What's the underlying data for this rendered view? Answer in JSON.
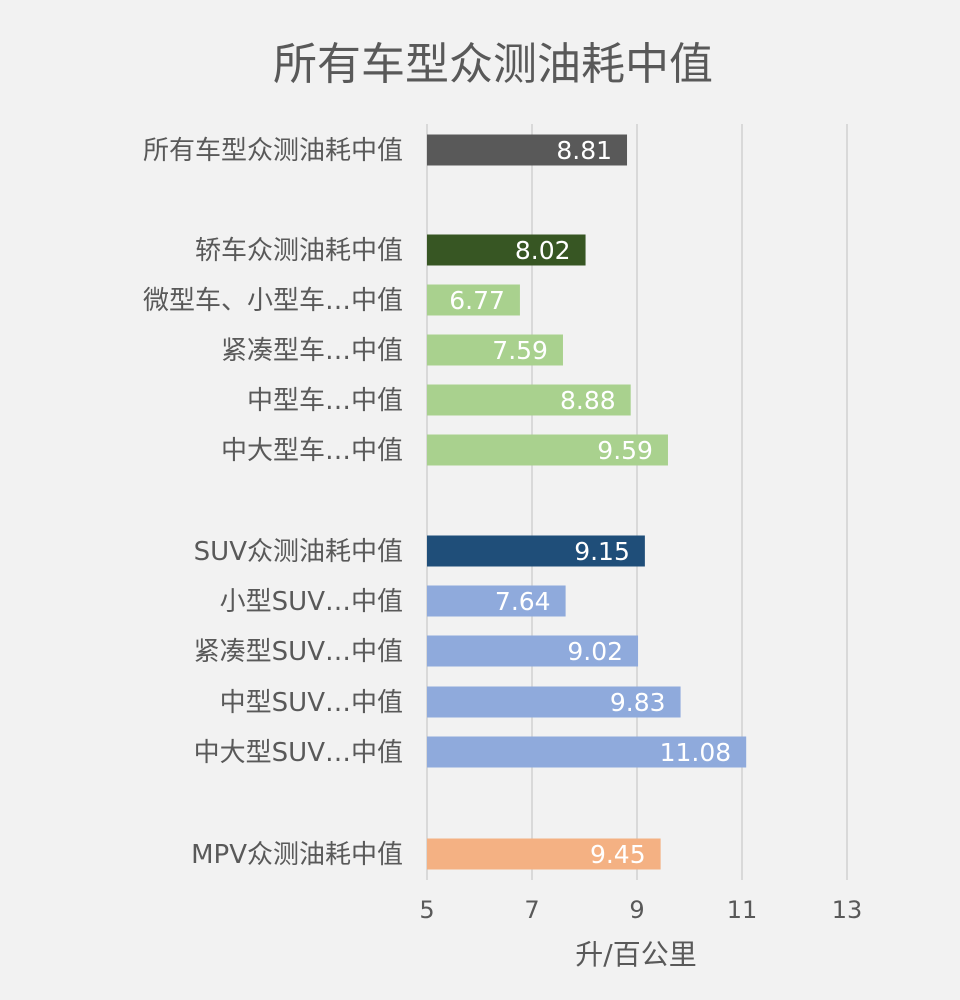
{
  "chart_data": {
    "type": "bar",
    "orientation": "horizontal",
    "title": "所有车型众测油耗中值",
    "xlabel": "升/百公里",
    "ylabel": "",
    "xlim": [
      5,
      13
    ],
    "x_ticks": [
      5,
      7,
      9,
      11,
      13
    ],
    "grid": true,
    "legend": "none",
    "categories": [
      "所有车型众测油耗中值",
      "轿车众测油耗中值",
      "微型车、小型车…中值",
      "紧凑型车…中值",
      "中型车…中值",
      "中大型车…中值",
      "SUV众测油耗中值",
      "小型SUV…中值",
      "紧凑型SUV…中值",
      "中型SUV…中值",
      "中大型SUV…中值",
      "MPV众测油耗中值"
    ],
    "values": [
      8.81,
      8.02,
      6.77,
      7.59,
      8.88,
      9.59,
      9.15,
      7.64,
      9.02,
      9.83,
      11.08,
      9.45
    ],
    "data_labels": [
      "8.81",
      "8.02",
      "6.77",
      "7.59",
      "8.88",
      "9.59",
      "9.15",
      "7.64",
      "9.02",
      "9.83",
      "11.08",
      "9.45"
    ],
    "colors": [
      "#595959",
      "#375623",
      "#a9d18e",
      "#a9d18e",
      "#a9d18e",
      "#a9d18e",
      "#1f4e79",
      "#8faadc",
      "#8faadc",
      "#8faadc",
      "#8faadc",
      "#f4b183"
    ]
  }
}
